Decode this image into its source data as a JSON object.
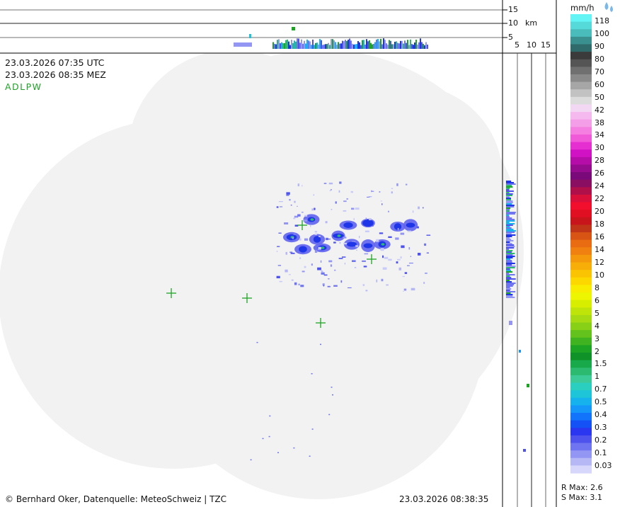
{
  "header": {
    "time_utc": "23.03.2026 07:35 UTC",
    "time_local": "23.03.2026 08:35 MEZ",
    "stations": "ADLPW"
  },
  "profile_top": {
    "tick_labels": [
      "15",
      "10",
      "5"
    ],
    "unit": "km"
  },
  "profile_side": {
    "tick_labels": [
      "5",
      "10",
      "15"
    ]
  },
  "legend": {
    "unit": "mm/h",
    "icon": "raindrops-icon",
    "labels": [
      "118",
      "100",
      "90",
      "80",
      "70",
      "60",
      "50",
      "42",
      "38",
      "34",
      "30",
      "28",
      "26",
      "24",
      "22",
      "20",
      "18",
      "16",
      "14",
      "12",
      "10",
      "8",
      "6",
      "5",
      "4",
      "3",
      "2",
      "1.5",
      "1",
      "0.7",
      "0.5",
      "0.4",
      "0.3",
      "0.2",
      "0.1",
      "0.03"
    ],
    "colors": [
      "#63f5f5",
      "#55d9d9",
      "#4bbcbc",
      "#3a8f8f",
      "#2f6b6b",
      "#3b3b3b",
      "#555",
      "#707070",
      "#8a8a8a",
      "#a6a6a6",
      "#c2c2c2",
      "#dcdcdc",
      "#f2d8f2",
      "#f5b8ef",
      "#f59ee8",
      "#f57fe1",
      "#f05ad9",
      "#e62fd0",
      "#d012c4",
      "#b50ea8",
      "#960c8f",
      "#7a0a7a",
      "#8a0f62",
      "#b0104a",
      "#d8103a",
      "#f20f2d",
      "#e00f22",
      "#c8151c",
      "#c03518",
      "#d85414",
      "#ea6c12",
      "#f0800f",
      "#f5990c",
      "#f8ae08",
      "#fbc403",
      "#fcd800",
      "#f8ec00",
      "#eef500",
      "#d8ee00",
      "#bfe40a",
      "#a6da12",
      "#88cf18",
      "#63c21c",
      "#3fb320",
      "#1ea425",
      "#0f9328",
      "#18a94a",
      "#2cba70",
      "#3ccb98",
      "#2bcfc0",
      "#1ec4d8",
      "#16b2ee",
      "#1497f8",
      "#1273fb",
      "#1552f5",
      "#2a36ef",
      "#4f53ee",
      "#6f74f0",
      "#9396f3",
      "#b6b8f6",
      "#d6d7fa"
    ],
    "rmax_label": "R Max: 2.6",
    "smax_label": "S Max: 3.1"
  },
  "footer": {
    "copyright": "© Bernhard Oker, Datenquelle: MeteoSchweiz | TZC",
    "timestamp": "23.03.2026 08:38:35"
  },
  "colors": {
    "coverage": "#f2f2f2",
    "station_marker": "#1ea425",
    "stations_text": "#1ea425"
  }
}
